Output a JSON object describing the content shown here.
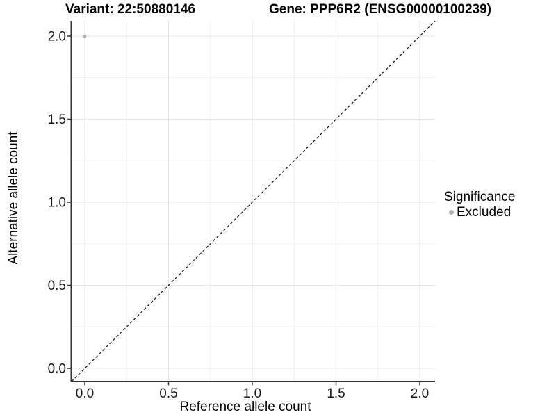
{
  "page": {
    "background": "#ffffff"
  },
  "header": {
    "title_left": "Variant: 22:50880146",
    "title_right": "Gene: PPP6R2 (ENSG00000100239)"
  },
  "chart_data": {
    "type": "scatter",
    "title": "Variant: 22:50880146 / Gene: PPP6R2 (ENSG00000100239)",
    "xlabel": "Reference allele count",
    "ylabel": "Alternative allele count",
    "xlim": [
      -0.08,
      2.09
    ],
    "ylim": [
      -0.08,
      2.09
    ],
    "x_ticks": {
      "values": [
        0,
        0.5,
        1,
        1.5,
        2
      ],
      "labels": [
        "0.0",
        "0.5",
        "1.0",
        "1.5",
        "2.0"
      ]
    },
    "y_ticks": {
      "values": [
        0,
        0.5,
        1,
        1.5,
        2
      ],
      "labels": [
        "0.0",
        "0.5",
        "1.0",
        "1.5",
        "2.0"
      ]
    },
    "grid": {
      "on": true,
      "major_values": [
        0,
        0.5,
        1,
        1.5,
        2
      ],
      "minor_values": [
        0.25,
        0.75,
        1.25,
        1.75
      ],
      "major_color": "#e6e6e6",
      "minor_color": "#f0f0f0"
    },
    "series": [
      {
        "name": "Excluded",
        "color": "#b0b0b0",
        "points": [
          {
            "x": 0.0,
            "y": 2.0
          }
        ]
      }
    ],
    "reference_line": {
      "slope": 1,
      "intercept": 0,
      "style": "dashed",
      "color": "#111111"
    },
    "legend": {
      "position": "right",
      "title": "Significance",
      "items": [
        {
          "label": "Excluded",
          "color": "#b0b0b0",
          "marker": "circle"
        }
      ]
    },
    "axis_color": "#333333",
    "tick_label_color": "#1a1a1a",
    "point_radius": 2.5
  }
}
